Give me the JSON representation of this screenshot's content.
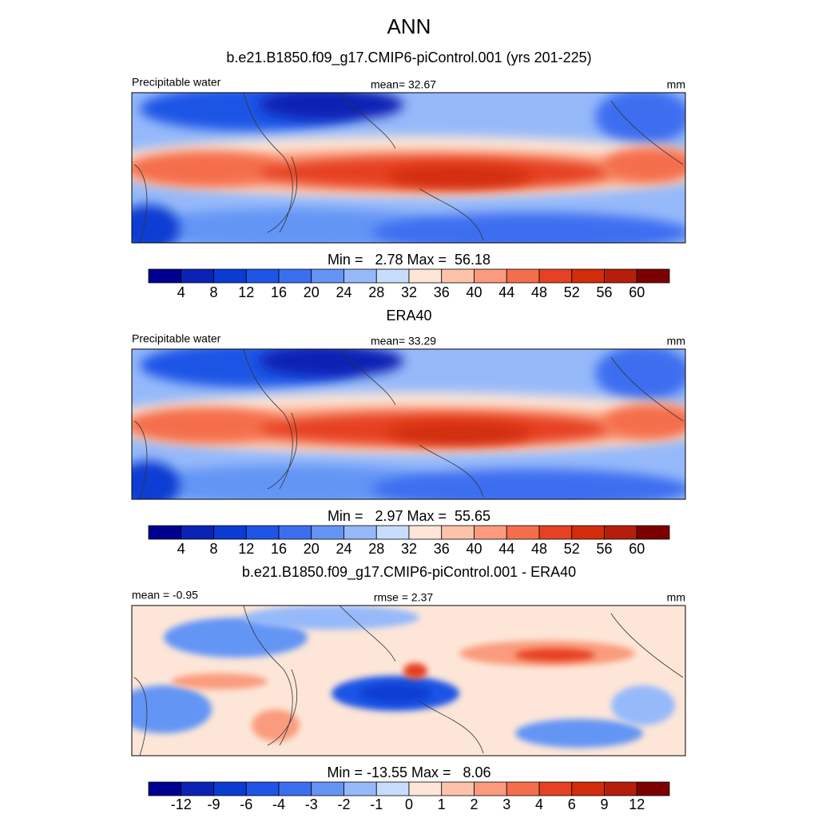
{
  "title": "ANN",
  "panels": [
    {
      "heading": "b.e21.B1850.f09_g17.CMIP6-piControl.001 (yrs 201-225)",
      "left_label": "Precipitable water",
      "center_label": "mean=  32.67",
      "right_label": "mm",
      "stats": "Min =   2.78 Max =  56.18",
      "colorbar": {
        "labels": [
          4,
          8,
          12,
          16,
          20,
          24,
          28,
          32,
          36,
          40,
          44,
          48,
          52,
          56,
          60
        ],
        "colors": [
          "#000090",
          "#0a23b4",
          "#0a3cd2",
          "#1e55e6",
          "#3c6ef0",
          "#6495f5",
          "#96b9fa",
          "#c8dcfc",
          "#fde6d8",
          "#fcc3aa",
          "#fa9b7d",
          "#f56e4b",
          "#e64123",
          "#d22d0a",
          "#b41e0a",
          "#7d0000"
        ]
      }
    },
    {
      "heading": "ERA40",
      "left_label": "Precipitable water",
      "center_label": "mean=  33.29",
      "right_label": "mm",
      "stats": "Min =   2.97 Max =  55.65",
      "colorbar": {
        "labels": [
          4,
          8,
          12,
          16,
          20,
          24,
          28,
          32,
          36,
          40,
          44,
          48,
          52,
          56,
          60
        ],
        "colors": [
          "#000090",
          "#0a23b4",
          "#0a3cd2",
          "#1e55e6",
          "#3c6ef0",
          "#6495f5",
          "#96b9fa",
          "#c8dcfc",
          "#fde6d8",
          "#fcc3aa",
          "#fa9b7d",
          "#f56e4b",
          "#e64123",
          "#d22d0a",
          "#b41e0a",
          "#7d0000"
        ]
      }
    },
    {
      "heading": "b.e21.B1850.f09_g17.CMIP6-piControl.001 - ERA40",
      "left_label": "mean =  -0.95",
      "center_label": "rmse =   2.37",
      "right_label": "mm",
      "stats": "Min = -13.55 Max =   8.06",
      "colorbar": {
        "labels": [
          -12,
          -9,
          -6,
          -4,
          -3,
          -2,
          -1,
          0,
          1,
          2,
          3,
          4,
          6,
          9,
          12
        ],
        "colors": [
          "#000090",
          "#0a23b4",
          "#0a3cd2",
          "#1e55e6",
          "#3c6ef0",
          "#6495f5",
          "#96b9fa",
          "#c8dcfc",
          "#fde6d8",
          "#fcc3aa",
          "#fa9b7d",
          "#f56e4b",
          "#e64123",
          "#d22d0a",
          "#b41e0a",
          "#7d0000"
        ]
      }
    }
  ]
}
